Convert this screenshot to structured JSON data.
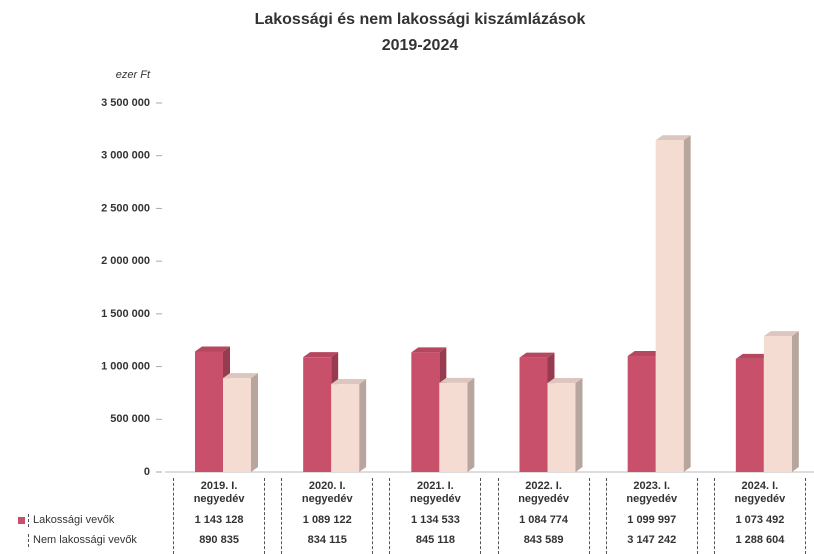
{
  "chart_data": {
    "type": "bar",
    "title": "Lakossági és nem lakossági kiszámlázások",
    "subtitle": "2019-2024",
    "y_axis_label": "ezer Ft",
    "categories": [
      "2019. I. negyedév",
      "2020. I. negyedév",
      "2021. I. negyedév",
      "2022. I. negyedév",
      "2023. I. negyedév",
      "2024. I. negyedév"
    ],
    "series": [
      {
        "name": "Lakossági vevők",
        "color": "#c9506a",
        "values": [
          1143128,
          1089122,
          1134533,
          1084774,
          1099997,
          1073492
        ],
        "value_labels": [
          "1 143 128",
          "1 089 122",
          "1 134 533",
          "1 084 774",
          "1 099 997",
          "1 073 492"
        ]
      },
      {
        "name": "Nem lakossági vevők",
        "color": "#f4dcd2",
        "values": [
          890835,
          834115,
          845118,
          843589,
          3147242,
          1288604
        ],
        "value_labels": [
          "890 835",
          "834 115",
          "845 118",
          "843 589",
          "3 147 242",
          "1 288 604"
        ]
      }
    ],
    "ylim": [
      0,
      3500000
    ],
    "yticks": [
      0,
      {
        "value": 500000,
        "label": "500 000"
      },
      {
        "value": 1000000,
        "label": "1 000 000"
      },
      {
        "value": 1500000,
        "label": "1 500 000"
      },
      {
        "value": 2000000,
        "label": "2 000 000"
      },
      {
        "value": 2500000,
        "label": "2 500 000"
      },
      {
        "value": 3000000,
        "label": "3 000 000"
      },
      {
        "value": 3500000,
        "label": "3 500 000"
      }
    ],
    "grid": false
  }
}
